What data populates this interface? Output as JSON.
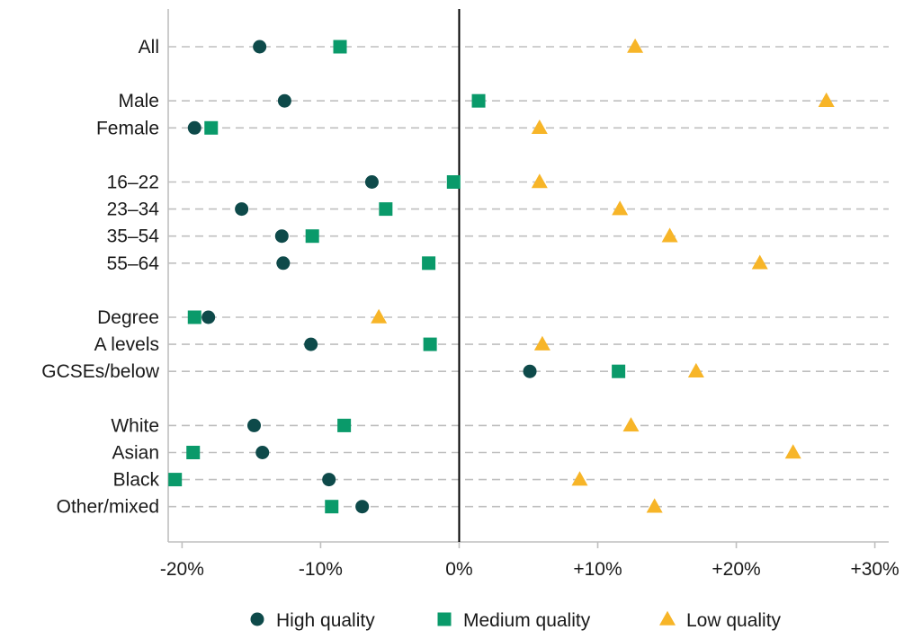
{
  "chart_data": {
    "type": "scatter",
    "title": "",
    "xlabel": "",
    "ylabel": "",
    "xlim": [
      -21,
      31
    ],
    "x_ticks": [
      {
        "value": -20,
        "label": "-20%"
      },
      {
        "value": -10,
        "label": "-10%"
      },
      {
        "value": 0,
        "label": "0%"
      },
      {
        "value": 10,
        "label": "+10%"
      },
      {
        "value": 20,
        "label": "+20%"
      },
      {
        "value": 30,
        "label": "+30%"
      }
    ],
    "grid": true,
    "legend_position": "bottom",
    "categories": [
      {
        "label": "All",
        "group": 0
      },
      {
        "label": "Male",
        "group": 1
      },
      {
        "label": "Female",
        "group": 1
      },
      {
        "label": "16–22",
        "group": 2
      },
      {
        "label": "23–34",
        "group": 2
      },
      {
        "label": "35–54",
        "group": 2
      },
      {
        "label": "55–64",
        "group": 2
      },
      {
        "label": "Degree",
        "group": 3
      },
      {
        "label": "A levels",
        "group": 3
      },
      {
        "label": "GCSEs/below",
        "group": 3
      },
      {
        "label": "White",
        "group": 4
      },
      {
        "label": "Asian",
        "group": 4
      },
      {
        "label": "Black",
        "group": 4
      },
      {
        "label": "Other/mixed",
        "group": 4
      }
    ],
    "series": [
      {
        "name": "High quality",
        "marker": "circle",
        "color": "#0e4a4a",
        "values": [
          -14.4,
          -12.6,
          -19.1,
          -6.3,
          -15.7,
          -12.8,
          -12.7,
          -18.1,
          -10.7,
          5.1,
          -14.8,
          -14.2,
          -9.4,
          -7.0
        ]
      },
      {
        "name": "Medium quality",
        "marker": "square",
        "color": "#0a9a6a",
        "values": [
          -8.6,
          1.4,
          -17.9,
          -0.4,
          -5.3,
          -10.6,
          -2.2,
          -19.1,
          -2.1,
          11.5,
          -8.3,
          -19.2,
          -20.5,
          -9.2
        ]
      },
      {
        "name": "Low quality",
        "marker": "triangle",
        "color": "#f7b528",
        "values": [
          12.7,
          26.5,
          5.8,
          5.8,
          11.6,
          15.2,
          21.7,
          -5.8,
          6.0,
          17.1,
          12.4,
          24.1,
          8.7,
          14.1
        ]
      }
    ]
  }
}
